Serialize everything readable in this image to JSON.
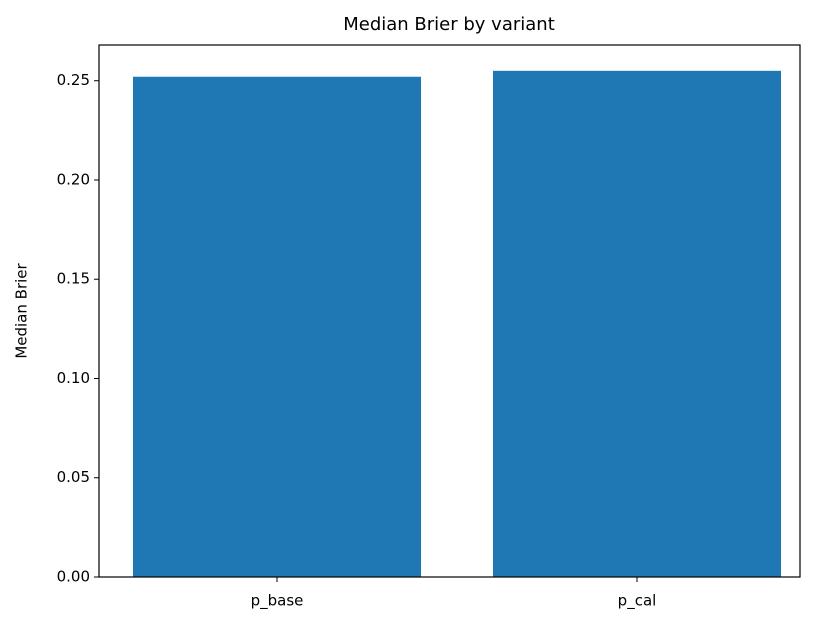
{
  "chart_data": {
    "type": "bar",
    "title": "Median Brier by variant",
    "ylabel": "Median Brier",
    "categories": [
      "p_base",
      "p_cal"
    ],
    "values": [
      0.252,
      0.255
    ],
    "color": "#1f77b4",
    "ylim": [
      0,
      0.268
    ],
    "yticks": [
      {
        "value": 0,
        "label": "0.00"
      },
      0.05,
      {
        "value": 0.1,
        "label": "0.10"
      },
      0.15,
      {
        "value": 0.2,
        "label": "0.20"
      },
      0.25
    ]
  }
}
